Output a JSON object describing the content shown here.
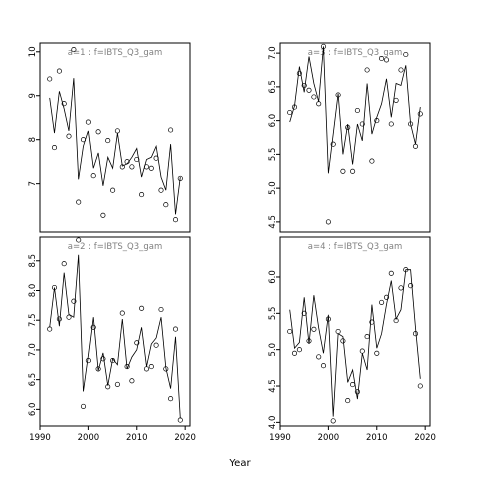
{
  "chart_data": {
    "type": "scatter",
    "xlabel": "Year",
    "xlim": [
      1990,
      2021
    ],
    "xticks": [
      1990,
      2000,
      2010,
      2020
    ],
    "panels": [
      {
        "title": "a=1  :  f=IBTS_Q3_gam",
        "ylim": [
          5.9,
          10.2
        ],
        "yticks": [
          7,
          8,
          9,
          10
        ],
        "points": {
          "x": [
            1992,
            1993,
            1994,
            1995,
            1996,
            1997,
            1998,
            1999,
            2000,
            2001,
            2002,
            2003,
            2004,
            2005,
            2006,
            2007,
            2008,
            2009,
            2010,
            2011,
            2012,
            2013,
            2014,
            2015,
            2016,
            2017,
            2018,
            2019
          ],
          "y": [
            9.38,
            7.82,
            9.56,
            8.82,
            8.08,
            10.05,
            6.58,
            8.0,
            8.4,
            7.18,
            8.18,
            6.28,
            7.98,
            6.85,
            8.2,
            7.38,
            7.5,
            7.38,
            7.55,
            6.75,
            7.38,
            7.35,
            7.58,
            6.85,
            6.52,
            8.22,
            6.18,
            7.12
          ]
        },
        "fit": {
          "x": [
            1992,
            1993,
            1994,
            1995,
            1996,
            1997,
            1998,
            1999,
            2000,
            2001,
            2002,
            2003,
            2004,
            2005,
            2006,
            2007,
            2008,
            2009,
            2010,
            2011,
            2012,
            2013,
            2014,
            2015,
            2016,
            2017,
            2018,
            2019
          ],
          "y": [
            8.95,
            8.15,
            9.1,
            8.7,
            8.2,
            9.4,
            7.1,
            7.85,
            8.2,
            7.35,
            7.7,
            6.95,
            7.6,
            7.35,
            8.15,
            7.4,
            7.45,
            7.6,
            7.8,
            7.15,
            7.55,
            7.6,
            7.85,
            7.15,
            6.85,
            7.9,
            6.3,
            7.15
          ]
        }
      },
      {
        "title": "a=3  :  f=IBTS_Q3_gam",
        "ylim": [
          4.35,
          7.15
        ],
        "yticks": [
          4.5,
          5.0,
          5.5,
          6.0,
          6.5,
          7.0
        ],
        "points": {
          "x": [
            1992,
            1993,
            1994,
            1995,
            1996,
            1997,
            1998,
            1999,
            2000,
            2001,
            2002,
            2003,
            2004,
            2005,
            2006,
            2007,
            2008,
            2009,
            2010,
            2011,
            2012,
            2013,
            2014,
            2015,
            2016,
            2017,
            2018,
            2019
          ],
          "y": [
            6.12,
            6.2,
            6.7,
            6.52,
            6.45,
            6.35,
            6.25,
            7.1,
            4.5,
            5.65,
            6.38,
            5.25,
            5.9,
            5.25,
            6.15,
            5.95,
            6.75,
            5.4,
            6.0,
            6.92,
            6.9,
            5.95,
            6.3,
            6.75,
            6.98,
            5.95,
            5.62,
            6.1
          ]
        },
        "fit": {
          "x": [
            1992,
            1993,
            1994,
            1995,
            1996,
            1997,
            1998,
            1999,
            2000,
            2001,
            2002,
            2003,
            2004,
            2005,
            2006,
            2007,
            2008,
            2009,
            2010,
            2011,
            2012,
            2013,
            2014,
            2015,
            2016,
            2017,
            2018,
            2019
          ],
          "y": [
            5.98,
            6.22,
            6.8,
            6.42,
            6.95,
            6.55,
            6.28,
            7.1,
            5.22,
            5.8,
            6.4,
            5.5,
            5.95,
            5.35,
            5.95,
            5.7,
            6.55,
            5.8,
            6.05,
            6.25,
            6.62,
            6.05,
            6.55,
            6.52,
            6.82,
            5.95,
            5.65,
            6.2
          ]
        }
      },
      {
        "title": "a=2  :  f=IBTS_Q3_gam",
        "ylim": [
          5.72,
          8.9
        ],
        "yticks": [
          6.0,
          6.5,
          7.0,
          7.5,
          8.0,
          8.5
        ],
        "points": {
          "x": [
            1992,
            1993,
            1994,
            1995,
            1996,
            1997,
            1998,
            1999,
            2000,
            2001,
            2002,
            2003,
            2004,
            2005,
            2006,
            2007,
            2008,
            2009,
            2010,
            2011,
            2012,
            2013,
            2014,
            2015,
            2016,
            2017,
            2018,
            2019
          ],
          "y": [
            7.35,
            8.05,
            7.52,
            8.45,
            7.55,
            7.82,
            8.85,
            6.05,
            6.82,
            7.38,
            6.68,
            6.85,
            6.38,
            6.82,
            6.42,
            7.62,
            6.72,
            6.48,
            7.12,
            7.7,
            6.68,
            6.72,
            7.08,
            7.68,
            6.68,
            6.18,
            7.35,
            5.82
          ]
        },
        "fit": {
          "x": [
            1992,
            1993,
            1994,
            1995,
            1996,
            1997,
            1998,
            1999,
            2000,
            2001,
            2002,
            2003,
            2004,
            2005,
            2006,
            2007,
            2008,
            2009,
            2010,
            2011,
            2012,
            2013,
            2014,
            2015,
            2016,
            2017,
            2018,
            2019
          ],
          "y": [
            7.38,
            8.05,
            7.4,
            8.3,
            7.6,
            7.55,
            8.6,
            6.3,
            6.9,
            7.55,
            6.65,
            6.95,
            6.4,
            6.85,
            6.75,
            7.52,
            6.68,
            6.88,
            7.0,
            7.38,
            6.72,
            7.1,
            7.2,
            7.55,
            6.7,
            6.35,
            7.22,
            5.85
          ]
        }
      },
      {
        "title": "a=4  :  f=IBTS_Q3_gam",
        "ylim": [
          3.95,
          6.55
        ],
        "yticks": [
          4.0,
          4.5,
          5.0,
          5.5,
          6.0
        ],
        "points": {
          "x": [
            1992,
            1993,
            1994,
            1995,
            1996,
            1997,
            1998,
            1999,
            2000,
            2001,
            2002,
            2003,
            2004,
            2005,
            2006,
            2007,
            2008,
            2009,
            2010,
            2011,
            2012,
            2013,
            2014,
            2015,
            2016,
            2017,
            2018,
            2019
          ],
          "y": [
            5.25,
            4.95,
            5.0,
            5.5,
            5.12,
            5.28,
            4.9,
            4.78,
            5.42,
            4.02,
            5.25,
            5.12,
            4.3,
            4.52,
            4.42,
            4.98,
            5.18,
            5.38,
            4.95,
            5.65,
            5.72,
            6.05,
            5.4,
            5.85,
            6.1,
            5.88,
            5.22,
            4.5
          ]
        },
        "fit": {
          "x": [
            1992,
            1993,
            1994,
            1995,
            1996,
            1997,
            1998,
            1999,
            2000,
            2001,
            2002,
            2003,
            2004,
            2005,
            2006,
            2007,
            2008,
            2009,
            2010,
            2011,
            2012,
            2013,
            2014,
            2015,
            2016,
            2017,
            2018,
            2019
          ],
          "y": [
            5.55,
            5.02,
            5.1,
            5.72,
            5.08,
            5.75,
            5.3,
            4.95,
            5.48,
            4.08,
            5.22,
            5.18,
            4.55,
            4.72,
            4.32,
            4.95,
            4.72,
            5.62,
            5.02,
            5.22,
            5.62,
            5.95,
            5.42,
            5.55,
            6.1,
            6.1,
            5.3,
            4.6
          ]
        }
      }
    ]
  }
}
